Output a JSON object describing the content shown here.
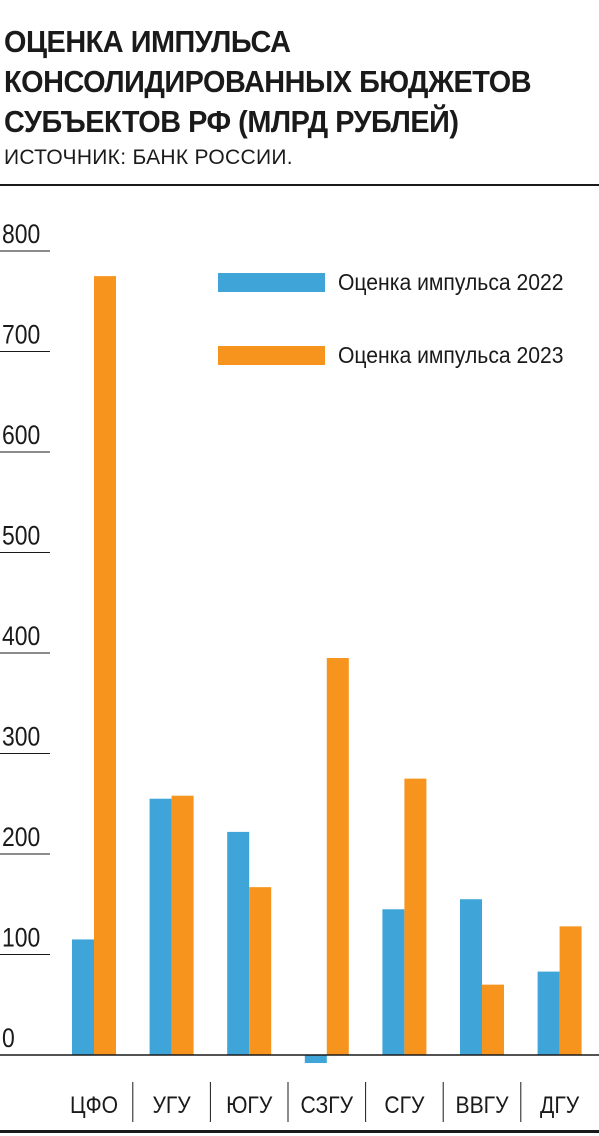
{
  "header": {
    "title_lines": [
      "ОЦЕНКА ИМПУЛЬСА",
      "КОНСОЛИДИРОВАННЫХ БЮДЖЕТОВ",
      "СУБЪЕКТОВ РФ (МЛРД РУБЛЕЙ)"
    ],
    "source": "ИСТОЧНИК: БАНК РОССИИ."
  },
  "chart_data": {
    "type": "bar",
    "title": "ОЦЕНКА ИМПУЛЬСА КОНСОЛИДИРОВАННЫХ БЮДЖЕТОВ СУБЪЕКТОВ РФ (МЛРД РУБЛЕЙ)",
    "categories": [
      "ЦФО",
      "УГУ",
      "ЮГУ",
      "СЗГУ",
      "СГУ",
      "ВВГУ",
      "ДГУ"
    ],
    "series": [
      {
        "name": "Оценка импульса 2022",
        "color": "#3fa5d8",
        "values": [
          115,
          255,
          222,
          -8,
          145,
          155,
          83
        ]
      },
      {
        "name": "Оценка импульса 2023",
        "color": "#f7941d",
        "values": [
          775,
          258,
          167,
          395,
          275,
          70,
          128
        ]
      }
    ],
    "yticks": [
      0,
      100,
      200,
      300,
      400,
      500,
      600,
      700,
      800
    ],
    "ylim": [
      0,
      800
    ],
    "grid": false,
    "legend_position": "top-right",
    "xlabel": "",
    "ylabel": ""
  }
}
